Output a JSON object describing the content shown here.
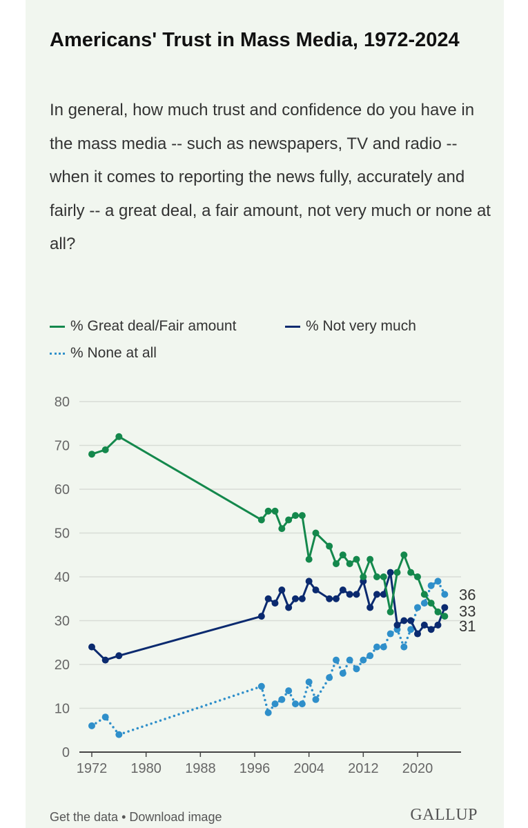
{
  "title": "Americans' Trust in Mass Media, 1972-2024",
  "question": "In general, how much trust and confidence do you have in the mass media -- such as newspapers, TV and radio -- when it comes to reporting the news fully, accurately and fairly -- a great deal, a fair amount, not very much or none at all?",
  "footer": {
    "get_data": "Get the data",
    "sep": " • ",
    "download": "Download image",
    "logo": "GALLUP"
  },
  "chart_data": {
    "type": "line",
    "title": "Americans' Trust in Mass Media, 1972-2024",
    "ylim": [
      0,
      80
    ],
    "yticks": [
      0,
      10,
      20,
      30,
      40,
      50,
      60,
      70,
      80
    ],
    "xticks": [
      1972,
      1980,
      1988,
      1996,
      2004,
      2012,
      2020
    ],
    "xlim": [
      1972,
      2024
    ],
    "grid": true,
    "legend_position": "top-left",
    "x": [
      1972,
      1974,
      1976,
      1997,
      1998,
      1999,
      2000,
      2001,
      2002,
      2003,
      2004,
      2005,
      2007,
      2008,
      2009,
      2010,
      2011,
      2012,
      2013,
      2014,
      2015,
      2016,
      2017,
      2018,
      2019,
      2020,
      2021,
      2022,
      2023,
      2024
    ],
    "series": [
      {
        "name": "% Great deal/Fair amount",
        "color": "#14884c",
        "style": "solid",
        "end_label": "31",
        "values": [
          68,
          69,
          72,
          53,
          55,
          55,
          51,
          53,
          54,
          54,
          44,
          50,
          47,
          43,
          45,
          43,
          44,
          40,
          44,
          40,
          40,
          32,
          41,
          45,
          41,
          40,
          36,
          34,
          32,
          31
        ]
      },
      {
        "name": "% Not very much",
        "color": "#0b2a6f",
        "style": "solid",
        "end_label": "33",
        "values": [
          24,
          21,
          22,
          31,
          35,
          34,
          37,
          33,
          35,
          35,
          39,
          37,
          35,
          35,
          37,
          36,
          36,
          39,
          33,
          36,
          36,
          41,
          29,
          30,
          30,
          27,
          29,
          28,
          29,
          33
        ]
      },
      {
        "name": "% None at all",
        "color": "#2f8fca",
        "style": "dotted",
        "end_label": "36",
        "values": [
          6,
          8,
          4,
          15,
          9,
          11,
          12,
          14,
          11,
          11,
          16,
          12,
          17,
          21,
          18,
          21,
          19,
          21,
          22,
          24,
          24,
          27,
          28,
          24,
          28,
          33,
          34,
          38,
          39,
          36
        ]
      }
    ]
  }
}
